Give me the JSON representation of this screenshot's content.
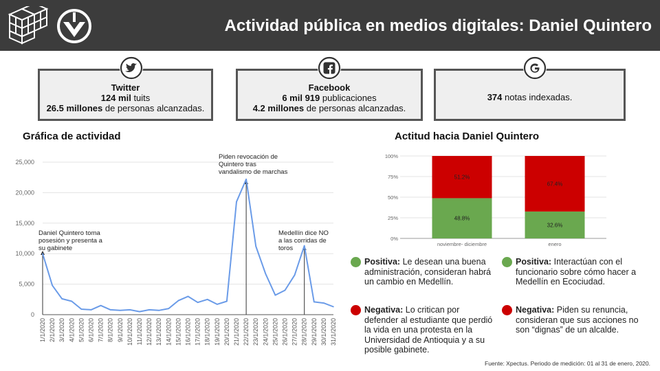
{
  "header": {
    "title": "Actividad pública en medios digitales: Daniel Quintero"
  },
  "cards": {
    "twitter": {
      "icon": "twitter-icon",
      "name": "Twitter",
      "count": "124 mil",
      "count_unit": "tuits",
      "reach": "26.5 millones",
      "reach_text": "de personas alcanzadas."
    },
    "facebook": {
      "icon": "facebook-icon",
      "name": "Facebook",
      "count": "6 mil 919",
      "count_unit": "publicaciones",
      "reach": "4.2 millones",
      "reach_text": "de personas alcanzadas."
    },
    "google": {
      "icon": "google-icon",
      "count": "374",
      "count_unit": "notas indexadas."
    }
  },
  "activity_title": "Gráfica de actividad",
  "attitude_title": "Actitud hacia Daniel Quintero",
  "chart_data": [
    {
      "type": "line",
      "title": "Gráfica de actividad",
      "x": [
        "1/1/2020",
        "2/1/2020",
        "3/1/2020",
        "4/1/2020",
        "5/1/2020",
        "6/1/2020",
        "7/1/2020",
        "8/1/2020",
        "9/1/2020",
        "10/1/2020",
        "11/1/2020",
        "12/1/2020",
        "13/1/2020",
        "14/1/2020",
        "15/1/2020",
        "16/1/2020",
        "17/1/2020",
        "18/1/2020",
        "19/1/2020",
        "20/1/2020",
        "21/1/2020",
        "22/1/2020",
        "23/1/2020",
        "24/1/2020",
        "25/1/2020",
        "26/1/2020",
        "27/1/2020",
        "28/1/2020",
        "29/1/2020",
        "30/1/2020",
        "31/1/2020"
      ],
      "values": [
        10000,
        4800,
        2600,
        2200,
        900,
        800,
        1500,
        800,
        700,
        800,
        500,
        800,
        700,
        1000,
        2300,
        3000,
        2000,
        2500,
        1700,
        2200,
        18500,
        22200,
        11200,
        6700,
        3200,
        4000,
        6500,
        11300,
        2100,
        1900,
        1300
      ],
      "ylim": [
        0,
        25000
      ],
      "yticks": [
        0,
        5000,
        10000,
        15000,
        20000,
        25000
      ],
      "ytick_labels": [
        "0",
        "5,000",
        "10,000",
        "15,000",
        "20,000",
        "25,000"
      ],
      "grid": true,
      "color": "#6a9be8",
      "annotations": [
        {
          "x": "1/1/2020",
          "lines": [
            "Daniel Quintero toma",
            "posesión y presenta a",
            "su gabinete"
          ]
        },
        {
          "x": "22/1/2020",
          "lines": [
            "Piden revocación de",
            "Quintero tras",
            "vandalismo de marchas"
          ]
        },
        {
          "x": "28/1/2020",
          "lines": [
            "Medellín dice NO",
            "a las corridas de",
            "toros"
          ]
        }
      ]
    },
    {
      "type": "bar",
      "stacked": true,
      "title": "Actitud hacia Daniel Quintero",
      "categories": [
        "noviembre- diciembre",
        "enero"
      ],
      "series": [
        {
          "name": "Positiva",
          "values": [
            48.8,
            32.6
          ],
          "labels": [
            "48.8%",
            "32.6%"
          ],
          "color": "#6aa84f"
        },
        {
          "name": "Negativa",
          "values": [
            51.2,
            67.4
          ],
          "labels": [
            "51.2%",
            "67.4%"
          ],
          "color": "#cc0000"
        }
      ],
      "ylim": [
        0,
        100
      ],
      "yticks": [
        0,
        25,
        50,
        75,
        100
      ],
      "ytick_labels": [
        "0%",
        "25%",
        "50%",
        "75%",
        "100%"
      ],
      "grid": true
    }
  ],
  "legend": {
    "pos_left": {
      "label": "Positiva:",
      "text": "Le desean una buena administración, consideran habrá un cambio en Medellín.",
      "color": "#6aa84f"
    },
    "pos_right": {
      "label": "Positiva:",
      "text": "Interactúan con el funcionario sobre cómo hacer a Medellín en Ecociudad.",
      "color": "#6aa84f"
    },
    "neg_left": {
      "label": "Negativa:",
      "text": "Lo critican por defender al estudiante que perdió la vida en una protesta en la Universidad de Antioquia y a su posible gabinete.",
      "color": "#cc0000"
    },
    "neg_right": {
      "label": "Negativa:",
      "text": "Piden su renuncia, consideran que sus acciones no son “dignas” de un alcalde.",
      "color": "#cc0000"
    }
  },
  "source": "Fuente: Xpectus. Periodo de medición:  01 al 31 de enero, 2020."
}
